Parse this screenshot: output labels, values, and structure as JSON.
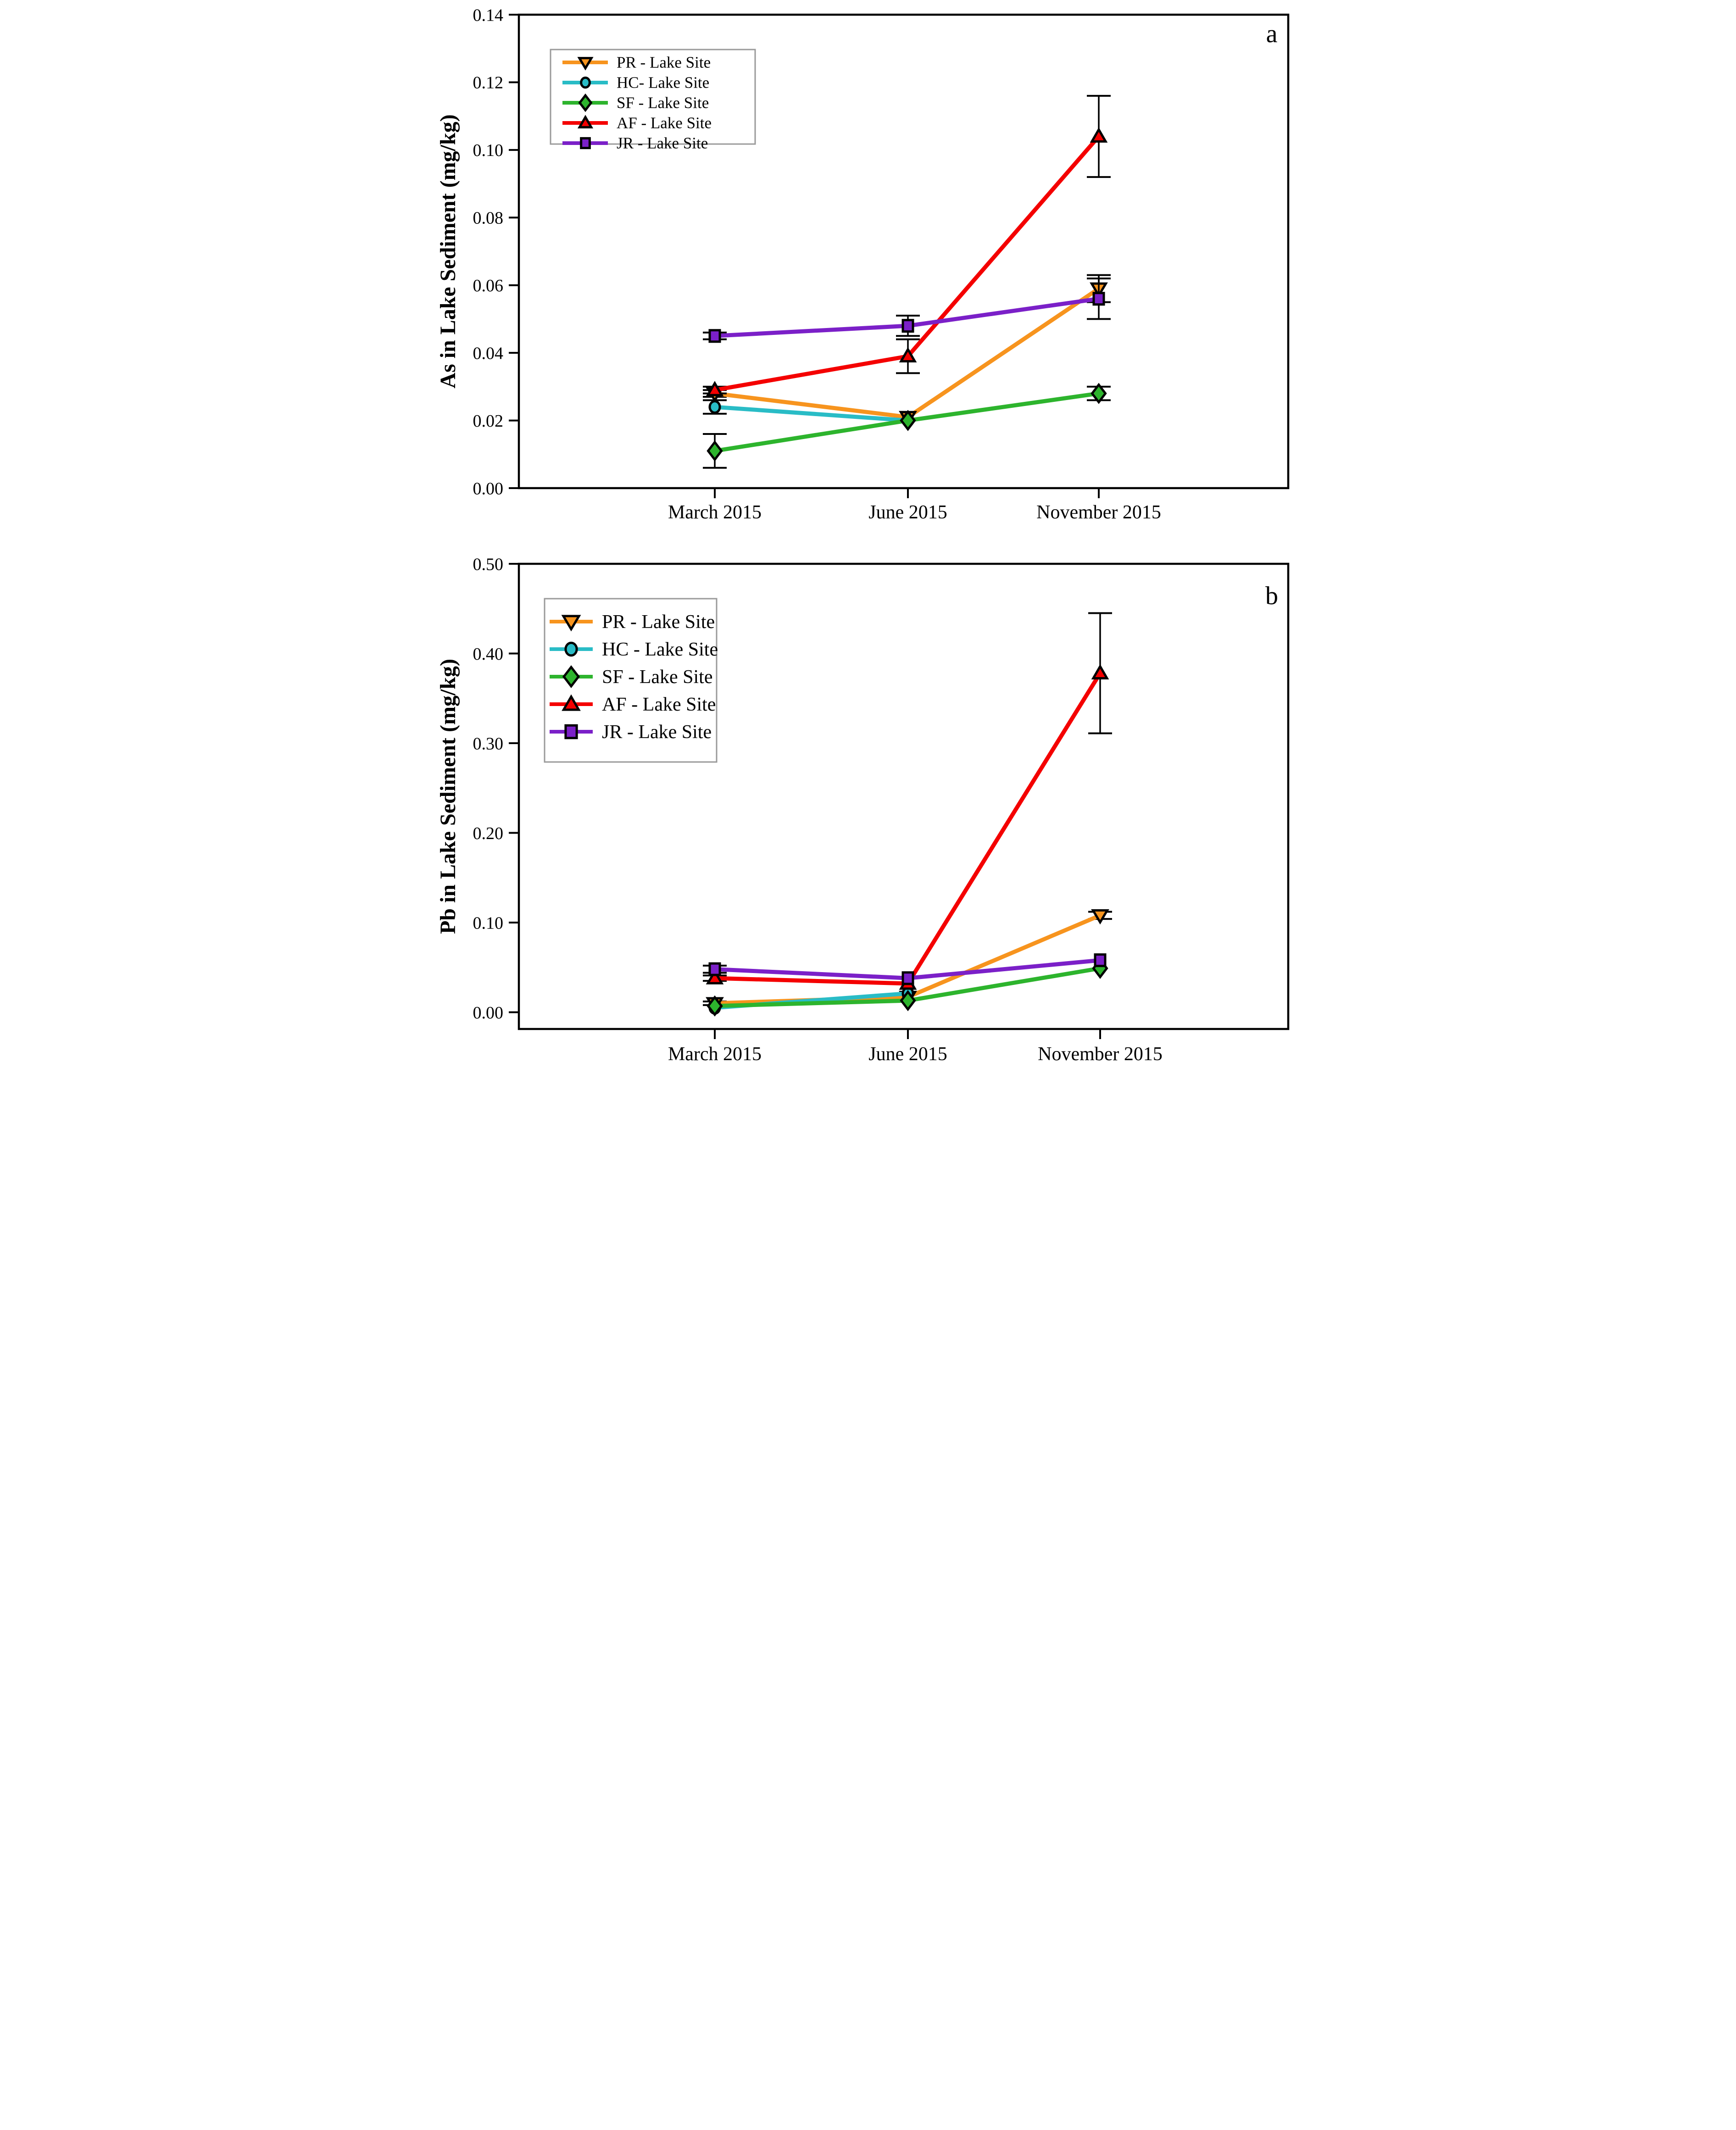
{
  "figure": {
    "background": "#FFFFFF",
    "panels_count": 2
  },
  "chart_data": [
    {
      "type": "line",
      "panel_label": "a",
      "title": "",
      "xlabel": "",
      "ylabel": "As in Lake Sediment (mg/kg)",
      "categories": [
        "March 2015",
        "June 2015",
        "November 2015"
      ],
      "ylim": [
        0.0,
        0.14
      ],
      "ytick_step": 0.02,
      "tick_decimals": 2,
      "grid": false,
      "legend_position": "upper-left",
      "legend_border_color": "#9A9A9A",
      "series": [
        {
          "name": "PR",
          "legend_label": "PR - Lake Site",
          "marker": "triangle-down",
          "color": "#F7941E",
          "values": [
            0.028,
            0.021,
            0.059
          ],
          "errors": [
            0.001,
            null,
            0.004
          ]
        },
        {
          "name": "HC",
          "legend_label": "HC- Lake Site",
          "marker": "circle",
          "color": "#29BCC6",
          "values": [
            0.024,
            0.02,
            null
          ],
          "errors": [
            0.002,
            null,
            null
          ]
        },
        {
          "name": "SF",
          "legend_label": "SF - Lake Site",
          "marker": "diamond",
          "color": "#2DB42D",
          "values": [
            0.011,
            0.02,
            0.028
          ],
          "errors": [
            0.005,
            null,
            0.002
          ]
        },
        {
          "name": "AF",
          "legend_label": "AF - Lake Site",
          "marker": "triangle-up",
          "color": "#F40000",
          "values": [
            0.029,
            0.039,
            0.104
          ],
          "errors": [
            0.001,
            0.005,
            0.012
          ]
        },
        {
          "name": "JR",
          "legend_label": "JR - Lake Site",
          "marker": "square",
          "color": "#7B20C8",
          "values": [
            0.045,
            0.048,
            0.056
          ],
          "errors": [
            0.001,
            0.003,
            0.006
          ]
        }
      ]
    },
    {
      "type": "line",
      "panel_label": "b",
      "title": "",
      "xlabel": "",
      "ylabel": "Pb in Lake Sediment (mg/kg)",
      "categories": [
        "March 2015",
        "June 2015",
        "November 2015"
      ],
      "ylim": [
        0.0,
        0.5
      ],
      "ytick_step": 0.1,
      "tick_decimals": 2,
      "grid": false,
      "legend_position": "upper-left",
      "legend_border_color": "#9A9A9A",
      "series": [
        {
          "name": "PR",
          "legend_label": "PR - Lake Site",
          "marker": "triangle-down",
          "color": "#F7941E",
          "values": [
            0.01,
            0.017,
            0.108
          ],
          "errors": [
            0.002,
            null,
            0.004
          ]
        },
        {
          "name": "HC",
          "legend_label": "HC - Lake Site",
          "marker": "circle",
          "color": "#29BCC6",
          "values": [
            0.005,
            0.021,
            null
          ],
          "errors": [
            null,
            null,
            null
          ]
        },
        {
          "name": "SF",
          "legend_label": "SF - Lake Site",
          "marker": "diamond",
          "color": "#2DB42D",
          "values": [
            0.007,
            0.013,
            0.049
          ],
          "errors": [
            null,
            null,
            null
          ]
        },
        {
          "name": "AF",
          "legend_label": "AF - Lake Site",
          "marker": "triangle-up",
          "color": "#F40000",
          "values": [
            0.038,
            0.032,
            0.378
          ],
          "errors": [
            0.003,
            null,
            0.067
          ]
        },
        {
          "name": "JR",
          "legend_label": "JR - Lake Site",
          "marker": "square",
          "color": "#7B20C8",
          "values": [
            0.048,
            0.038,
            0.058
          ],
          "errors": [
            0.004,
            null,
            null
          ]
        }
      ]
    }
  ]
}
